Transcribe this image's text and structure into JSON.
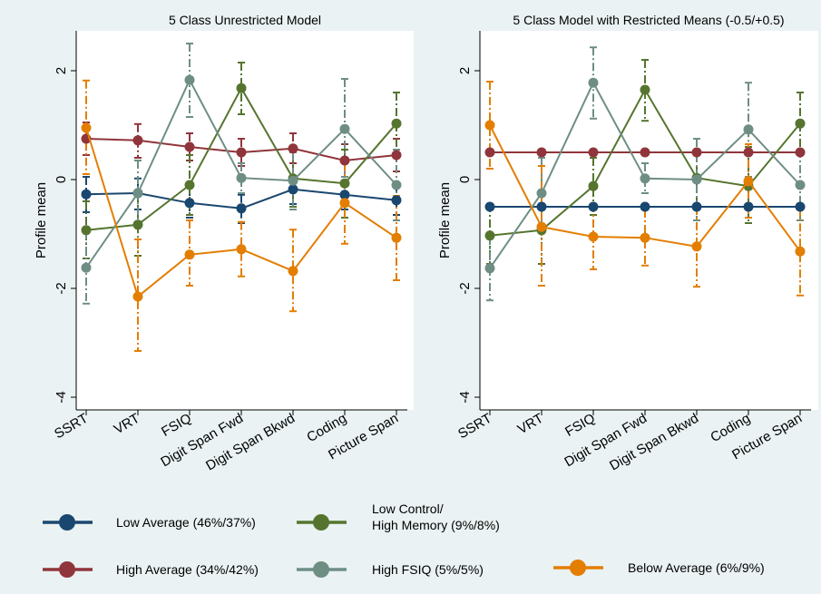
{
  "chart_data": [
    {
      "type": "line",
      "title": "5 Class Unrestricted Model",
      "xlabel": "",
      "ylabel": "Profile mean",
      "ylim": [
        -4,
        2.6
      ],
      "yticks": [
        -4,
        -2,
        0,
        2
      ],
      "categories": [
        "SSRT",
        "VRT",
        "FSIQ",
        "Digit Span Fwd",
        "Digit Span Bkwd",
        "Coding",
        "Picture Span"
      ],
      "error_bars": "dashed vertical intervals with caps",
      "grid": false,
      "series": [
        {
          "name": "Low Average (46%/37%)",
          "color": "#1a476f",
          "values": [
            -0.27,
            -0.25,
            -0.43,
            -0.53,
            -0.18,
            -0.28,
            -0.38
          ],
          "lower": [
            -0.6,
            -0.55,
            -0.7,
            -0.8,
            -0.45,
            -0.55,
            -0.65
          ],
          "upper": [
            0.05,
            0.02,
            -0.15,
            -0.28,
            0.05,
            -0.02,
            -0.1
          ]
        },
        {
          "name": "High Average (34%/42%)",
          "color": "#90353b",
          "values": [
            0.75,
            0.72,
            0.6,
            0.5,
            0.57,
            0.35,
            0.45
          ],
          "lower": [
            0.45,
            0.4,
            0.35,
            0.25,
            0.3,
            0.05,
            0.15
          ],
          "upper": [
            1.05,
            1.02,
            0.85,
            0.75,
            0.85,
            0.65,
            0.75
          ]
        },
        {
          "name": "Low Control/ High Memory (9%/8%)",
          "color": "#55752f",
          "values": [
            -0.93,
            -0.83,
            -0.1,
            1.68,
            0.02,
            -0.07,
            1.03
          ],
          "lower": [
            -1.45,
            -1.4,
            -0.65,
            1.2,
            -0.5,
            -0.7,
            0.45
          ],
          "upper": [
            -0.4,
            -0.27,
            0.45,
            2.15,
            0.55,
            0.55,
            1.6
          ]
        },
        {
          "name": "High FSIQ (5%/5%)",
          "color": "#6e8e84",
          "values": [
            -1.62,
            -0.25,
            1.83,
            0.03,
            -0.02,
            0.93,
            -0.1
          ],
          "lower": [
            -2.28,
            -0.85,
            1.15,
            -0.25,
            -0.55,
            0.05,
            -0.75
          ],
          "upper": [
            -0.95,
            0.35,
            2.5,
            0.3,
            0.5,
            1.85,
            0.55
          ]
        },
        {
          "name": "Below Average (6%/9%)",
          "color": "#e37e00",
          "values": [
            0.95,
            -2.15,
            -1.38,
            -1.28,
            -1.68,
            -0.43,
            -1.07
          ],
          "lower": [
            0.1,
            -3.15,
            -1.95,
            -1.78,
            -2.42,
            -1.18,
            -1.85
          ],
          "upper": [
            1.82,
            -1.1,
            -0.75,
            -0.78,
            -0.92,
            0.3,
            -0.3
          ]
        }
      ]
    },
    {
      "type": "line",
      "title": "5 Class Model with Restricted Means (-0.5/+0.5)",
      "xlabel": "",
      "ylabel": "Profile mean",
      "ylim": [
        -4,
        2.6
      ],
      "yticks": [
        -4,
        -2,
        0,
        2
      ],
      "categories": [
        "SSRT",
        "VRT",
        "FSIQ",
        "Digit Span Fwd",
        "Digit Span Bkwd",
        "Coding",
        "Picture Span"
      ],
      "error_bars": "dashed vertical intervals with caps",
      "grid": false,
      "series": [
        {
          "name": "Low Average (46%/37%)",
          "color": "#1a476f",
          "values": [
            -0.5,
            -0.5,
            -0.5,
            -0.5,
            -0.5,
            -0.5,
            -0.5
          ],
          "lower": [
            -0.55,
            -0.55,
            -0.55,
            -0.55,
            -0.55,
            -0.55,
            -0.55
          ],
          "upper": [
            -0.45,
            -0.45,
            -0.45,
            -0.45,
            -0.45,
            -0.45,
            -0.45
          ]
        },
        {
          "name": "High Average (34%/42%)",
          "color": "#90353b",
          "values": [
            0.5,
            0.5,
            0.5,
            0.5,
            0.5,
            0.5,
            0.5
          ],
          "lower": [
            0.45,
            0.45,
            0.45,
            0.45,
            0.45,
            0.45,
            0.45
          ],
          "upper": [
            0.55,
            0.55,
            0.55,
            0.55,
            0.55,
            0.55,
            0.55
          ]
        },
        {
          "name": "Low Control/ High Memory (9%/8%)",
          "color": "#55752f",
          "values": [
            -1.03,
            -0.93,
            -0.12,
            1.65,
            0.03,
            -0.12,
            1.03
          ],
          "lower": [
            -1.55,
            -1.55,
            -0.65,
            1.08,
            -0.5,
            -0.8,
            0.45
          ],
          "upper": [
            -0.45,
            -0.3,
            0.4,
            2.2,
            0.55,
            0.6,
            1.6
          ]
        },
        {
          "name": "High FSIQ (5%/5%)",
          "color": "#6e8e84",
          "values": [
            -1.63,
            -0.25,
            1.78,
            0.02,
            0.0,
            0.92,
            -0.1
          ],
          "lower": [
            -2.22,
            -0.9,
            1.12,
            -0.25,
            -0.75,
            0.05,
            -0.75
          ],
          "upper": [
            -1.05,
            0.4,
            2.43,
            0.3,
            0.75,
            1.78,
            0.55
          ]
        },
        {
          "name": "Below Average (6%/9%)",
          "color": "#e37e00",
          "values": [
            1.0,
            -0.87,
            -1.05,
            -1.07,
            -1.23,
            -0.03,
            -1.32
          ],
          "lower": [
            0.2,
            -1.95,
            -1.65,
            -1.58,
            -1.97,
            -0.7,
            -2.13
          ],
          "upper": [
            1.8,
            0.25,
            -0.45,
            -0.55,
            -0.5,
            0.65,
            -0.52
          ]
        }
      ]
    }
  ],
  "legend": {
    "placement": "bottom",
    "items": [
      {
        "label": "Low Average (46%/37%)",
        "color": "#1a476f"
      },
      {
        "label_line1": "Low Control/",
        "label_line2": "High Memory (9%/8%)",
        "color": "#55752f"
      },
      {
        "label": "High Average (34%/42%)",
        "color": "#90353b"
      },
      {
        "label": "High FSIQ (5%/5%)",
        "color": "#6e8e84"
      },
      {
        "label": "Below Average (6%/9%)",
        "color": "#e37e00"
      }
    ]
  }
}
